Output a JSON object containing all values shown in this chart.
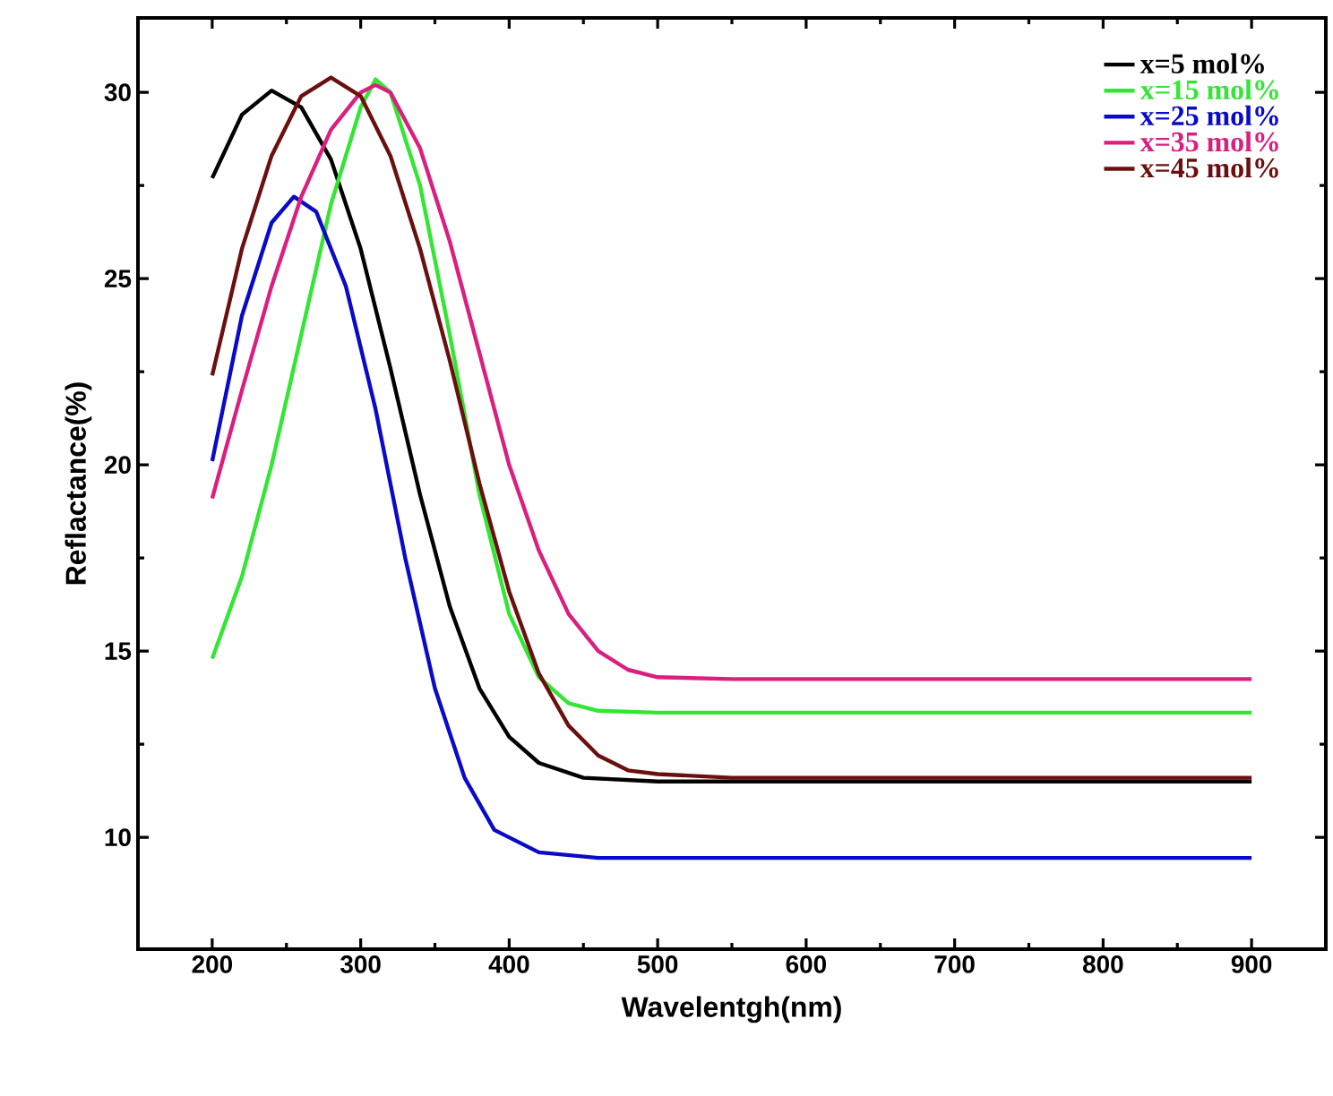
{
  "chart_data": {
    "type": "line",
    "xlabel": "Wavelentgh(nm)",
    "ylabel": "Reflactance(%)",
    "xlim": [
      150,
      950
    ],
    "xticks": [
      200,
      300,
      400,
      500,
      600,
      700,
      800,
      900
    ],
    "ylim": [
      7,
      32
    ],
    "yticks": [
      10,
      15,
      20,
      25,
      30
    ],
    "legend": "top right",
    "series": [
      {
        "name": "x=5 mol%",
        "color": "#000000",
        "x": [
          200,
          220,
          240,
          260,
          280,
          300,
          320,
          340,
          360,
          380,
          400,
          420,
          450,
          500,
          600,
          900
        ],
        "values": [
          27.7,
          29.4,
          30.05,
          29.6,
          28.2,
          25.8,
          22.6,
          19.2,
          16.2,
          14.0,
          12.7,
          12.0,
          11.6,
          11.5,
          11.5,
          11.5
        ]
      },
      {
        "name": "x=15 mol%",
        "color": "#33e633",
        "x": [
          200,
          220,
          240,
          260,
          280,
          300,
          310,
          320,
          340,
          360,
          380,
          400,
          420,
          440,
          460,
          500,
          900
        ],
        "values": [
          14.8,
          17.0,
          20.0,
          23.5,
          27.0,
          29.6,
          30.35,
          30.0,
          27.5,
          23.5,
          19.2,
          16.0,
          14.3,
          13.6,
          13.4,
          13.35,
          13.35
        ]
      },
      {
        "name": "x=25 mol%",
        "color": "#0a0ac8",
        "x": [
          200,
          220,
          240,
          255,
          270,
          290,
          310,
          330,
          350,
          370,
          390,
          420,
          460,
          500,
          900
        ],
        "values": [
          20.1,
          24.0,
          26.5,
          27.2,
          26.8,
          24.8,
          21.5,
          17.5,
          14.0,
          11.6,
          10.2,
          9.6,
          9.45,
          9.45,
          9.45
        ]
      },
      {
        "name": "x=35 mol%",
        "color": "#d9207f",
        "x": [
          200,
          220,
          240,
          260,
          280,
          300,
          310,
          320,
          340,
          360,
          380,
          400,
          420,
          440,
          460,
          480,
          500,
          550,
          900
        ],
        "values": [
          19.1,
          22.0,
          24.8,
          27.2,
          29.0,
          30.0,
          30.2,
          30.0,
          28.5,
          26.0,
          23.0,
          20.0,
          17.7,
          16.0,
          15.0,
          14.5,
          14.3,
          14.25,
          14.25
        ]
      },
      {
        "name": "x=45 mol%",
        "color": "#6b0f0f",
        "x": [
          200,
          220,
          240,
          260,
          280,
          300,
          320,
          340,
          360,
          380,
          400,
          420,
          440,
          460,
          480,
          500,
          550,
          900
        ],
        "values": [
          22.4,
          25.8,
          28.3,
          29.9,
          30.4,
          29.9,
          28.3,
          25.8,
          22.8,
          19.5,
          16.6,
          14.4,
          13.0,
          12.2,
          11.8,
          11.7,
          11.6,
          11.6
        ]
      }
    ]
  }
}
